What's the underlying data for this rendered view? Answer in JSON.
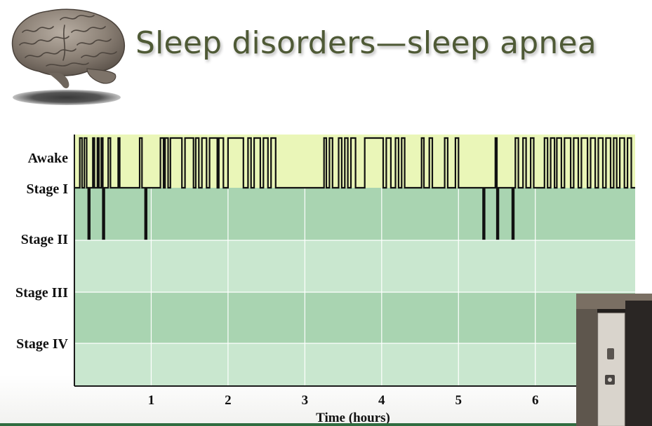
{
  "title": "Sleep disorders—sleep apnea",
  "icons": {
    "brain": "brain-illustration",
    "video": "presenter-video-inset"
  },
  "colors": {
    "title": "#4f5a36",
    "awake_band": "#eaf6b8",
    "stage_band_dark": "#a9d4b1",
    "stage_band_light": "#c9e7cf",
    "hypnogram_trace": "#111111",
    "axis": "#1a1a1a"
  },
  "chart_data": {
    "type": "line",
    "title": "",
    "xlabel": "Time (hours)",
    "ylabel": "",
    "x_ticks": [
      1,
      2,
      3,
      4,
      5,
      6
    ],
    "xlim": [
      0,
      7.3
    ],
    "y_categories": [
      "Awake",
      "Stage I",
      "Stage II",
      "Stage III",
      "Stage IV"
    ],
    "grid": true,
    "series": [
      {
        "values": [
          [
            0.0,
            "Stage I"
          ],
          [
            0.07,
            "Awake"
          ],
          [
            0.1,
            "Stage I"
          ],
          [
            0.13,
            "Awake"
          ],
          [
            0.16,
            "Stage I"
          ],
          [
            0.18,
            "Stage II"
          ],
          [
            0.2,
            "Stage I"
          ],
          [
            0.24,
            "Awake"
          ],
          [
            0.26,
            "Stage I"
          ],
          [
            0.3,
            "Awake"
          ],
          [
            0.32,
            "Stage I"
          ],
          [
            0.35,
            "Awake"
          ],
          [
            0.37,
            "Stage II"
          ],
          [
            0.39,
            "Stage I"
          ],
          [
            0.44,
            "Awake"
          ],
          [
            0.47,
            "Stage I"
          ],
          [
            0.57,
            "Awake"
          ],
          [
            0.59,
            "Stage I"
          ],
          [
            0.85,
            "Awake"
          ],
          [
            0.88,
            "Stage I"
          ],
          [
            0.92,
            "Stage II"
          ],
          [
            0.94,
            "Stage I"
          ],
          [
            1.12,
            "Awake"
          ],
          [
            1.16,
            "Stage I"
          ],
          [
            1.18,
            "Awake"
          ],
          [
            1.22,
            "Stage I"
          ],
          [
            1.25,
            "Awake"
          ],
          [
            1.4,
            "Stage I"
          ],
          [
            1.44,
            "Awake"
          ],
          [
            1.55,
            "Stage I"
          ],
          [
            1.58,
            "Awake"
          ],
          [
            1.62,
            "Stage I"
          ],
          [
            1.66,
            "Awake"
          ],
          [
            1.72,
            "Stage I"
          ],
          [
            1.76,
            "Awake"
          ],
          [
            1.86,
            "Stage I"
          ],
          [
            1.88,
            "Awake"
          ],
          [
            1.94,
            "Stage I"
          ],
          [
            2.0,
            "Awake"
          ],
          [
            2.2,
            "Stage I"
          ],
          [
            2.26,
            "Awake"
          ],
          [
            2.3,
            "Stage I"
          ],
          [
            2.34,
            "Awake"
          ],
          [
            2.42,
            "Stage I"
          ],
          [
            2.46,
            "Awake"
          ],
          [
            2.52,
            "Stage I"
          ],
          [
            2.56,
            "Awake"
          ],
          [
            2.62,
            "Stage I"
          ],
          [
            3.25,
            "Awake"
          ],
          [
            3.28,
            "Stage I"
          ],
          [
            3.32,
            "Awake"
          ],
          [
            3.36,
            "Stage I"
          ],
          [
            3.44,
            "Awake"
          ],
          [
            3.48,
            "Stage I"
          ],
          [
            3.52,
            "Awake"
          ],
          [
            3.56,
            "Stage I"
          ],
          [
            3.6,
            "Awake"
          ],
          [
            3.66,
            "Stage I"
          ],
          [
            3.78,
            "Awake"
          ],
          [
            4.02,
            "Stage I"
          ],
          [
            4.06,
            "Awake"
          ],
          [
            4.12,
            "Stage I"
          ],
          [
            4.18,
            "Awake"
          ],
          [
            4.22,
            "Stage I"
          ],
          [
            4.26,
            "Awake"
          ],
          [
            4.3,
            "Stage I"
          ],
          [
            4.52,
            "Awake"
          ],
          [
            4.55,
            "Stage I"
          ],
          [
            4.62,
            "Awake"
          ],
          [
            4.66,
            "Stage I"
          ],
          [
            4.82,
            "Awake"
          ],
          [
            4.86,
            "Stage I"
          ],
          [
            4.96,
            "Awake"
          ],
          [
            5.0,
            "Stage I"
          ],
          [
            5.32,
            "Stage II"
          ],
          [
            5.34,
            "Stage I"
          ],
          [
            5.48,
            "Awake"
          ],
          [
            5.5,
            "Stage II"
          ],
          [
            5.52,
            "Stage I"
          ],
          [
            5.7,
            "Stage II"
          ],
          [
            5.72,
            "Stage I"
          ],
          [
            5.74,
            "Awake"
          ],
          [
            5.78,
            "Stage I"
          ],
          [
            5.84,
            "Awake"
          ],
          [
            5.88,
            "Stage I"
          ],
          [
            5.94,
            "Awake"
          ],
          [
            5.98,
            "Stage I"
          ],
          [
            6.12,
            "Awake"
          ],
          [
            6.16,
            "Stage I"
          ],
          [
            6.2,
            "Awake"
          ],
          [
            6.25,
            "Stage I"
          ],
          [
            6.28,
            "Awake"
          ],
          [
            6.34,
            "Stage I"
          ],
          [
            6.38,
            "Awake"
          ],
          [
            6.46,
            "Stage I"
          ],
          [
            6.5,
            "Awake"
          ],
          [
            6.56,
            "Stage I"
          ],
          [
            6.6,
            "Awake"
          ],
          [
            6.68,
            "Stage I"
          ],
          [
            6.72,
            "Awake"
          ],
          [
            6.78,
            "Stage I"
          ],
          [
            6.82,
            "Awake"
          ],
          [
            6.88,
            "Stage I"
          ],
          [
            6.92,
            "Awake"
          ],
          [
            6.98,
            "Stage I"
          ],
          [
            7.02,
            "Awake"
          ],
          [
            7.06,
            "Stage I"
          ],
          [
            7.1,
            "Awake"
          ],
          [
            7.16,
            "Stage I"
          ],
          [
            7.2,
            "Awake"
          ],
          [
            7.25,
            "Stage I"
          ]
        ]
      }
    ]
  }
}
